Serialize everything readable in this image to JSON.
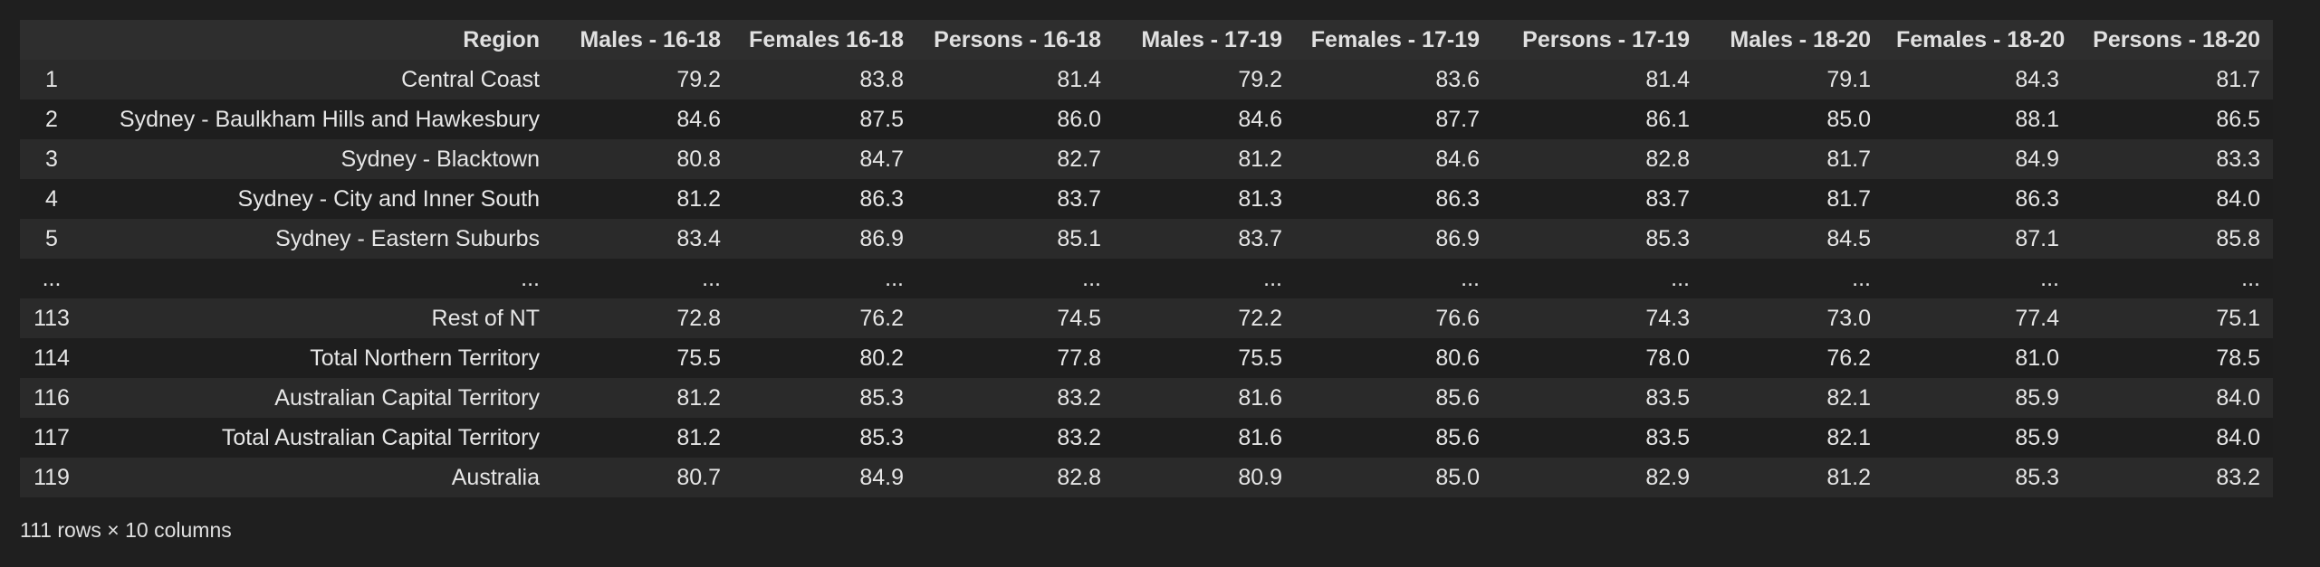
{
  "table": {
    "columns": [
      "",
      "Region",
      "Males - 16-18",
      "Females 16-18",
      "Persons - 16-18",
      "Males - 17-19",
      "Females - 17-19",
      "Persons - 17-19",
      "Males - 18-20",
      "Females - 18-20",
      "Persons - 18-20"
    ],
    "rows": [
      [
        "1",
        "Central Coast",
        "79.2",
        "83.8",
        "81.4",
        "79.2",
        "83.6",
        "81.4",
        "79.1",
        "84.3",
        "81.7"
      ],
      [
        "2",
        "Sydney - Baulkham Hills and Hawkesbury",
        "84.6",
        "87.5",
        "86.0",
        "84.6",
        "87.7",
        "86.1",
        "85.0",
        "88.1",
        "86.5"
      ],
      [
        "3",
        "Sydney - Blacktown",
        "80.8",
        "84.7",
        "82.7",
        "81.2",
        "84.6",
        "82.8",
        "81.7",
        "84.9",
        "83.3"
      ],
      [
        "4",
        "Sydney - City and Inner South",
        "81.2",
        "86.3",
        "83.7",
        "81.3",
        "86.3",
        "83.7",
        "81.7",
        "86.3",
        "84.0"
      ],
      [
        "5",
        "Sydney - Eastern Suburbs",
        "83.4",
        "86.9",
        "85.1",
        "83.7",
        "86.9",
        "85.3",
        "84.5",
        "87.1",
        "85.8"
      ],
      [
        "...",
        "...",
        "...",
        "...",
        "...",
        "...",
        "...",
        "...",
        "...",
        "...",
        "..."
      ],
      [
        "113",
        "Rest of NT",
        "72.8",
        "76.2",
        "74.5",
        "72.2",
        "76.6",
        "74.3",
        "73.0",
        "77.4",
        "75.1"
      ],
      [
        "114",
        "Total Northern Territory",
        "75.5",
        "80.2",
        "77.8",
        "75.5",
        "80.6",
        "78.0",
        "76.2",
        "81.0",
        "78.5"
      ],
      [
        "116",
        "Australian Capital Territory",
        "81.2",
        "85.3",
        "83.2",
        "81.6",
        "85.6",
        "83.5",
        "82.1",
        "85.9",
        "84.0"
      ],
      [
        "117",
        "Total Australian Capital Territory",
        "81.2",
        "85.3",
        "83.2",
        "81.6",
        "85.6",
        "83.5",
        "82.1",
        "85.9",
        "84.0"
      ],
      [
        "119",
        "Australia",
        "80.7",
        "84.9",
        "82.8",
        "80.9",
        "85.0",
        "82.9",
        "81.2",
        "85.3",
        "83.2"
      ]
    ]
  },
  "footer": {
    "shape_text": "111 rows × 10 columns"
  }
}
